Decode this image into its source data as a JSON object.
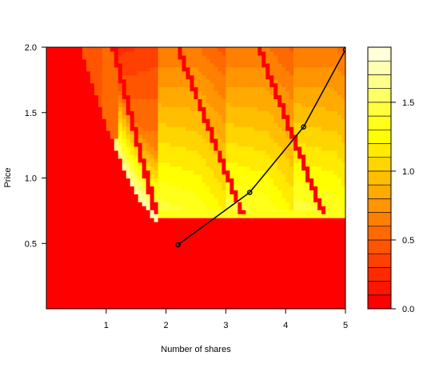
{
  "chart_data": {
    "type": "heatmap",
    "title": "",
    "xlabel": "Number of shares",
    "ylabel": "Price",
    "xlim": [
      0,
      5
    ],
    "ylim": [
      0,
      2
    ],
    "x_ticks": [
      1,
      2,
      3,
      4,
      5
    ],
    "x_tick_labels": [
      "1",
      "2",
      "3",
      "4",
      "5"
    ],
    "y_ticks": [
      0.5,
      1.0,
      1.5,
      2.0
    ],
    "y_tick_labels": [
      "0.5",
      "1.0",
      "1.5",
      "2.0"
    ],
    "colorbar": {
      "range": [
        0,
        1.9
      ],
      "ticks": [
        0,
        0.5,
        1.0,
        1.5
      ],
      "tick_labels": [
        "0.0",
        "0.5",
        "1.0",
        "1.5"
      ],
      "levels": [
        0,
        0.1,
        0.2,
        0.3,
        0.4,
        0.5,
        0.6,
        0.7,
        0.8,
        0.9,
        1.0,
        1.1,
        1.2,
        1.3,
        1.4,
        1.5,
        1.6,
        1.7,
        1.8,
        1.9
      ]
    },
    "contour_levels": [
      {
        "range": [
          0,
          0.1
        ],
        "color": "#ff0000"
      },
      {
        "range": [
          0.1,
          0.2
        ],
        "color": "#ff1500"
      },
      {
        "range": [
          0.2,
          0.3
        ],
        "color": "#ff2b00"
      },
      {
        "range": [
          0.3,
          0.4
        ],
        "color": "#ff4000"
      },
      {
        "range": [
          0.4,
          0.5
        ],
        "color": "#ff5500"
      },
      {
        "range": [
          0.5,
          0.6
        ],
        "color": "#ff6a00"
      },
      {
        "range": [
          0.6,
          0.7
        ],
        "color": "#ff8000"
      },
      {
        "range": [
          0.7,
          0.8
        ],
        "color": "#ff9500"
      },
      {
        "range": [
          0.8,
          0.9
        ],
        "color": "#ffaa00"
      },
      {
        "range": [
          0.9,
          1.0
        ],
        "color": "#ffbf00"
      },
      {
        "range": [
          1.0,
          1.1
        ],
        "color": "#ffd500"
      },
      {
        "range": [
          1.1,
          1.2
        ],
        "color": "#ffea00"
      },
      {
        "range": [
          1.2,
          1.3
        ],
        "color": "#ffff00"
      },
      {
        "range": [
          1.3,
          1.4
        ],
        "color": "#ffff1a"
      },
      {
        "range": [
          1.4,
          1.5
        ],
        "color": "#ffff40"
      },
      {
        "range": [
          1.5,
          1.6
        ],
        "color": "#ffff66"
      },
      {
        "range": [
          1.6,
          1.7
        ],
        "color": "#ffff8c"
      },
      {
        "range": [
          1.7,
          1.8
        ],
        "color": "#ffffb3"
      },
      {
        "range": [
          1.8,
          1.9
        ],
        "color": "#ffffd9"
      }
    ],
    "series": [
      {
        "type": "line",
        "points": [
          {
            "x": 2.2,
            "y": 0.49
          },
          {
            "x": 3.4,
            "y": 0.89
          },
          {
            "x": 4.3,
            "y": 1.39
          },
          {
            "x": 5.0,
            "y": 1.98
          }
        ]
      }
    ],
    "grid": false,
    "legend": "colorbar-right"
  }
}
